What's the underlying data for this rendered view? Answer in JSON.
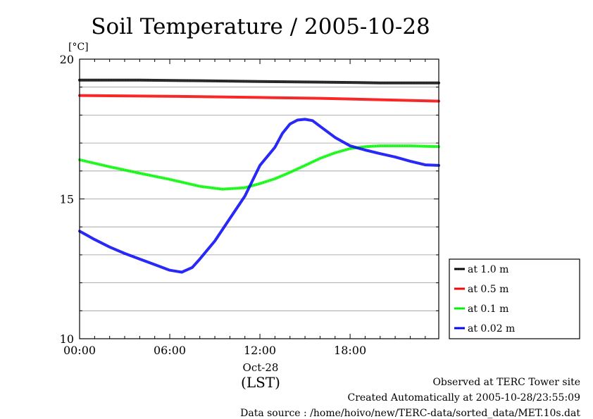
{
  "chart_data": {
    "type": "line",
    "title": "Soil Temperature / 2005-10-28",
    "ylabel": "[°C]",
    "xlim": [
      0,
      23.9
    ],
    "ylim": [
      10,
      20
    ],
    "y_ticks": [
      10,
      15,
      20
    ],
    "y_gridlines": [
      11,
      12,
      13,
      14,
      15,
      16,
      17,
      18,
      19
    ],
    "x_ticks": [
      {
        "hour": 0,
        "label": "00:00"
      },
      {
        "hour": 6,
        "label": "06:00"
      },
      {
        "hour": 12,
        "label": "12:00"
      },
      {
        "hour": 18,
        "label": "18:00"
      }
    ],
    "x_date_label": "Oct-28",
    "x_unit_label": "(LST)",
    "legend_placement": "right",
    "series": [
      {
        "name": "at 1.0 m",
        "color": "#000000",
        "x": [
          0,
          4,
          8,
          12,
          16,
          20,
          23.9
        ],
        "y": [
          19.25,
          19.25,
          19.23,
          19.2,
          19.18,
          19.15,
          19.15
        ]
      },
      {
        "name": "at 0.5 m",
        "color": "#ff0000",
        "x": [
          0,
          4,
          8,
          12,
          16,
          20,
          23.9
        ],
        "y": [
          18.7,
          18.68,
          18.66,
          18.63,
          18.6,
          18.55,
          18.5
        ]
      },
      {
        "name": "at 0.1 m",
        "color": "#00ff00",
        "x": [
          0,
          2,
          4,
          6,
          8,
          9.5,
          11,
          12,
          13,
          14,
          15,
          16,
          17,
          18,
          19,
          20,
          21,
          22,
          23.9
        ],
        "y": [
          16.4,
          16.15,
          15.92,
          15.7,
          15.45,
          15.35,
          15.4,
          15.55,
          15.72,
          15.95,
          16.2,
          16.45,
          16.65,
          16.8,
          16.87,
          16.9,
          16.9,
          16.9,
          16.87
        ]
      },
      {
        "name": "at 0.02 m",
        "color": "#0000ff",
        "x": [
          0,
          1,
          2,
          3,
          4,
          5,
          6,
          6.8,
          7.5,
          8,
          9,
          10,
          11,
          12,
          13,
          13.5,
          14,
          14.5,
          15,
          15.5,
          16,
          17,
          18,
          19,
          20,
          21,
          22,
          23,
          23.9
        ],
        "y": [
          13.85,
          13.55,
          13.28,
          13.05,
          12.85,
          12.65,
          12.45,
          12.38,
          12.55,
          12.85,
          13.5,
          14.3,
          15.1,
          16.2,
          16.85,
          17.35,
          17.68,
          17.82,
          17.85,
          17.8,
          17.6,
          17.2,
          16.9,
          16.75,
          16.62,
          16.5,
          16.35,
          16.22,
          16.2
        ]
      }
    ]
  },
  "footer": {
    "line1": "Observed at TERC Tower site",
    "line2": "Created Automatically at 2005-10-28/23:55:09",
    "line3": "Data source : /home/hoivo/new/TERC-data/sorted_data/MET.10s.dat"
  }
}
